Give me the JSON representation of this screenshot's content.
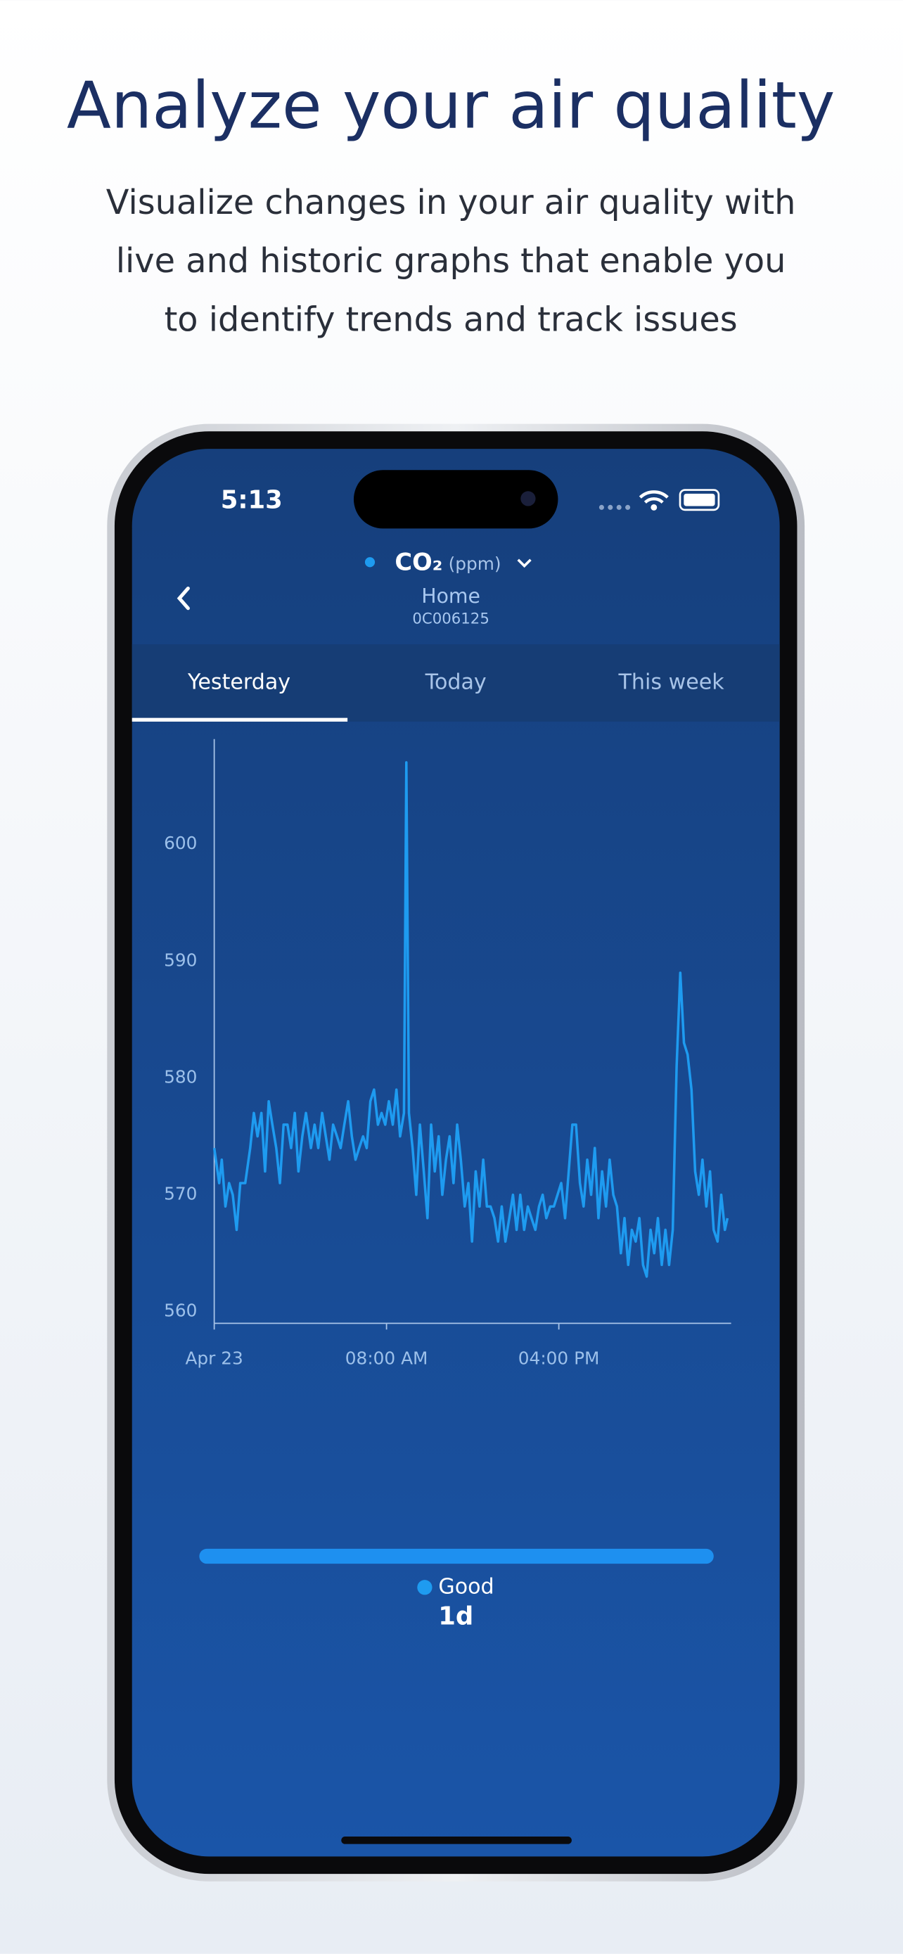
{
  "header": {
    "title": "Analyze your air quality",
    "subtitle_lines": [
      "Visualize changes in your air quality with",
      "live and historic graphs that enable you",
      "to identify trends and track issues"
    ]
  },
  "status_bar": {
    "time": "5:13"
  },
  "app_header": {
    "metric": "CO₂",
    "unit": "(ppm)",
    "location": "Home",
    "device_id": "0C006125"
  },
  "tabs": [
    "Yesterday",
    "Today",
    "This week"
  ],
  "legend": {
    "label": "Good",
    "period": "1d"
  },
  "chart_data": {
    "type": "line",
    "color": "#1e9bf0",
    "grid": false,
    "xlim": [
      0,
      24
    ],
    "xticks": [
      {
        "value": 0,
        "label": "Apr 23"
      },
      {
        "value": 8,
        "label": "08:00 AM"
      },
      {
        "value": 16,
        "label": "04:00 PM"
      }
    ],
    "ylim": [
      559,
      609
    ],
    "yticks": [
      560,
      570,
      580,
      590,
      600
    ],
    "x": [
      0,
      0.23,
      0.35,
      0.52,
      0.69,
      0.86,
      1.04,
      1.21,
      1.44,
      1.67,
      1.84,
      2.01,
      2.19,
      2.36,
      2.53,
      2.7,
      2.88,
      3.05,
      3.22,
      3.4,
      3.57,
      3.74,
      3.91,
      4.09,
      4.26,
      4.49,
      4.66,
      4.83,
      5.01,
      5.18,
      5.35,
      5.52,
      5.7,
      5.87,
      6.04,
      6.22,
      6.39,
      6.56,
      6.73,
      6.91,
      7.08,
      7.25,
      7.42,
      7.6,
      7.77,
      7.94,
      8.11,
      8.29,
      8.46,
      8.63,
      8.81,
      8.92,
      9.04,
      9.21,
      9.38,
      9.55,
      9.73,
      9.9,
      10.07,
      10.24,
      10.42,
      10.59,
      10.76,
      10.93,
      11.11,
      11.28,
      11.45,
      11.63,
      11.8,
      11.97,
      12.14,
      12.32,
      12.49,
      12.66,
      12.83,
      13.01,
      13.18,
      13.35,
      13.52,
      13.7,
      13.87,
      14.04,
      14.21,
      14.39,
      14.56,
      14.73,
      14.91,
      15.08,
      15.25,
      15.42,
      15.6,
      15.77,
      15.94,
      16.11,
      16.29,
      16.46,
      16.63,
      16.8,
      16.98,
      17.15,
      17.32,
      17.5,
      17.67,
      17.84,
      18.01,
      18.19,
      18.36,
      18.53,
      18.7,
      18.88,
      19.05,
      19.22,
      19.39,
      19.57,
      19.74,
      19.91,
      20.08,
      20.26,
      20.43,
      20.6,
      20.78,
      20.95,
      21.12,
      21.29,
      21.47,
      21.64,
      21.81,
      21.98,
      22.16,
      22.33,
      22.5,
      22.67,
      22.85,
      23.02,
      23.19,
      23.37,
      23.54,
      23.71,
      23.83
    ],
    "values": [
      574,
      571,
      573,
      569,
      571,
      570,
      567,
      571,
      571,
      574,
      577,
      575,
      577,
      572,
      578,
      576,
      574,
      571,
      576,
      576,
      574,
      577,
      572,
      575,
      577,
      574,
      576,
      574,
      577,
      575,
      573,
      576,
      575,
      574,
      576,
      578,
      575,
      573,
      574,
      575,
      574,
      578,
      579,
      576,
      577,
      576,
      578,
      576,
      579,
      575,
      577,
      607,
      577,
      574,
      570,
      576,
      572,
      568,
      576,
      572,
      575,
      570,
      573,
      575,
      571,
      576,
      573,
      569,
      571,
      566,
      572,
      569,
      573,
      569,
      569,
      568,
      566,
      569,
      566,
      568,
      570,
      567,
      570,
      567,
      569,
      568,
      567,
      569,
      570,
      568,
      569,
      569,
      570,
      571,
      568,
      572,
      576,
      576,
      571,
      569,
      573,
      570,
      574,
      568,
      572,
      569,
      573,
      570,
      569,
      565,
      568,
      564,
      567,
      566,
      568,
      564,
      563,
      567,
      565,
      568,
      564,
      567,
      564,
      567,
      581,
      589,
      583,
      582,
      579,
      572,
      570,
      573,
      569,
      572,
      567,
      566,
      570,
      567,
      568
    ]
  }
}
